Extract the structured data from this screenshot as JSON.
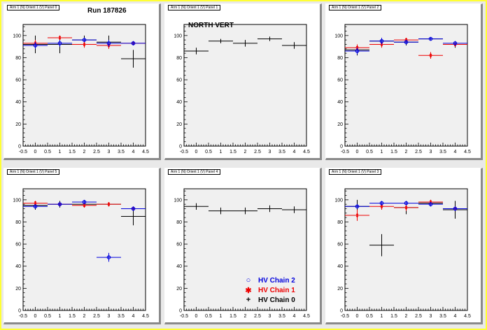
{
  "colors": {
    "chain0": "#000000",
    "chain1": "#ee0000",
    "chain2": "#0000dd",
    "plot_bg": "#f0f0f0",
    "pad_bg": "#ffffff",
    "canvas_bg": "#e9e9e9",
    "border": "#ffff33"
  },
  "labels": {
    "run": "Run 187826",
    "north_vert": "NORTH VERT"
  },
  "legend": [
    {
      "name": "HV Chain 2",
      "marker": "○",
      "color_key": "chain2"
    },
    {
      "name": "HV Chain 1",
      "marker": "✱",
      "color_key": "chain1"
    },
    {
      "name": "HV Chain 0",
      "marker": "+",
      "color_key": "chain0"
    }
  ],
  "chart_data": [
    {
      "type": "scatter",
      "title": "Arm 1 (N) Orient 1 (V) Panel 0",
      "xlim": [
        -0.5,
        4.5
      ],
      "ylim": [
        0,
        110
      ],
      "xticks": [
        "-0.5",
        "0",
        "0.5",
        "1",
        "1.5",
        "2",
        "2.5",
        "3",
        "3.5",
        "4",
        "4.5"
      ],
      "yticks": [
        "0",
        "20",
        "40",
        "60",
        "80",
        "100"
      ],
      "series": [
        {
          "color_key": "chain0",
          "points": [
            {
              "x": 0,
              "y": 92,
              "err": 8
            },
            {
              "x": 1,
              "y": 92,
              "err": 8
            },
            {
              "x": 2,
              "y": 96,
              "err": 4
            },
            {
              "x": 3,
              "y": 94,
              "err": 6
            },
            {
              "x": 4,
              "y": 79,
              "err": 8
            }
          ]
        },
        {
          "color_key": "chain1",
          "points": [
            {
              "x": 0,
              "y": 93,
              "err": 3
            },
            {
              "x": 1,
              "y": 98,
              "err": 2
            },
            {
              "x": 2,
              "y": 92,
              "err": 3
            },
            {
              "x": 3,
              "y": 91,
              "err": 3
            },
            {
              "x": 4,
              "y": 93,
              "err": 2
            }
          ]
        },
        {
          "color_key": "chain2",
          "points": [
            {
              "x": 0,
              "y": 91,
              "err": 3
            },
            {
              "x": 1,
              "y": 93,
              "err": 3
            },
            {
              "x": 2,
              "y": 96,
              "err": 2
            },
            {
              "x": 3,
              "y": 93,
              "err": 3
            },
            {
              "x": 4,
              "y": 93,
              "err": 2
            }
          ]
        }
      ]
    },
    {
      "type": "scatter",
      "title": "Arm 1 (N) Orient 1 (V) Panel 1",
      "xlim": [
        -0.5,
        4.5
      ],
      "ylim": [
        0,
        110
      ],
      "xticks": [
        "-0.5",
        "0",
        "0.5",
        "1",
        "1.5",
        "2",
        "2.5",
        "3",
        "3.5",
        "4",
        "4.5"
      ],
      "yticks": [
        "0",
        "20",
        "40",
        "60",
        "80",
        "100"
      ],
      "series": [
        {
          "color_key": "chain0",
          "points": [
            {
              "x": 0,
              "y": 86,
              "err": 3
            },
            {
              "x": 1,
              "y": 95,
              "err": 2
            },
            {
              "x": 2,
              "y": 93,
              "err": 3
            },
            {
              "x": 3,
              "y": 97,
              "err": 2
            },
            {
              "x": 4,
              "y": 91,
              "err": 3
            }
          ]
        }
      ]
    },
    {
      "type": "scatter",
      "title": "Arm 1 (N) Orient 1 (V) Panel 2",
      "xlim": [
        -0.5,
        4.5
      ],
      "ylim": [
        0,
        110
      ],
      "xticks": [
        "-0.5",
        "0",
        "0.5",
        "1",
        "1.5",
        "2",
        "2.5",
        "3",
        "3.5",
        "4",
        "4.5"
      ],
      "yticks": [
        "0",
        "20",
        "40",
        "60",
        "80",
        "100"
      ],
      "series": [
        {
          "color_key": "chain0",
          "points": [
            {
              "x": 0,
              "y": 87,
              "err": 5
            },
            {
              "x": 1,
              "y": 95,
              "err": 3
            },
            {
              "x": 2,
              "y": 94,
              "err": 3
            },
            {
              "x": 3,
              "y": 97,
              "err": 1
            },
            {
              "x": 4,
              "y": 92,
              "err": 3
            }
          ]
        },
        {
          "color_key": "chain1",
          "points": [
            {
              "x": 0,
              "y": 89,
              "err": 3
            },
            {
              "x": 1,
              "y": 92,
              "err": 3
            },
            {
              "x": 2,
              "y": 96,
              "err": 2
            },
            {
              "x": 3,
              "y": 82,
              "err": 3
            },
            {
              "x": 4,
              "y": 92,
              "err": 2
            }
          ]
        },
        {
          "color_key": "chain2",
          "points": [
            {
              "x": 0,
              "y": 86,
              "err": 3
            },
            {
              "x": 1,
              "y": 95,
              "err": 3
            },
            {
              "x": 2,
              "y": 94,
              "err": 2
            },
            {
              "x": 3,
              "y": 97,
              "err": 1
            },
            {
              "x": 4,
              "y": 93,
              "err": 2
            }
          ]
        }
      ]
    },
    {
      "type": "scatter",
      "title": "Arm 1 (N) Orient 1 (V) Panel 5",
      "xlim": [
        -0.5,
        4.5
      ],
      "ylim": [
        0,
        110
      ],
      "xticks": [
        "-0.5",
        "0",
        "0.5",
        "1",
        "1.5",
        "2",
        "2.5",
        "3",
        "3.5",
        "4",
        "4.5"
      ],
      "yticks": [
        "0",
        "20",
        "40",
        "60",
        "80",
        "100"
      ],
      "series": [
        {
          "color_key": "chain0",
          "points": [
            {
              "x": 0,
              "y": 95,
              "err": 4
            },
            {
              "x": 1,
              "y": 96,
              "err": 3
            },
            {
              "x": 2,
              "y": 96,
              "err": 3
            },
            {
              "x": 3,
              "y": 96,
              "err": 2
            },
            {
              "x": 4,
              "y": 85,
              "err": 8
            }
          ]
        },
        {
          "color_key": "chain1",
          "points": [
            {
              "x": 0,
              "y": 97,
              "err": 2
            },
            {
              "x": 1,
              "y": 96,
              "err": 2
            },
            {
              "x": 2,
              "y": 95,
              "err": 2
            },
            {
              "x": 3,
              "y": 96,
              "err": 2
            },
            {
              "x": 4,
              "y": 92,
              "err": 2
            }
          ]
        },
        {
          "color_key": "chain2",
          "points": [
            {
              "x": 0,
              "y": 94,
              "err": 2
            },
            {
              "x": 1,
              "y": 96,
              "err": 2
            },
            {
              "x": 2,
              "y": 98,
              "err": 2
            },
            {
              "x": 3,
              "y": 48,
              "err": 4
            },
            {
              "x": 4,
              "y": 92,
              "err": 2
            }
          ]
        }
      ]
    },
    {
      "type": "scatter",
      "title": "Arm 1 (N) Orient 1 (V) Panel 4",
      "xlim": [
        -0.5,
        4.5
      ],
      "ylim": [
        0,
        110
      ],
      "xticks": [
        "-0.5",
        "0",
        "0.5",
        "1",
        "1.5",
        "2",
        "2.5",
        "3",
        "3.5",
        "4",
        "4.5"
      ],
      "yticks": [
        "0",
        "20",
        "40",
        "60",
        "80",
        "100"
      ],
      "series": [
        {
          "color_key": "chain0",
          "points": [
            {
              "x": 0,
              "y": 94,
              "err": 3
            },
            {
              "x": 1,
              "y": 90,
              "err": 3
            },
            {
              "x": 2,
              "y": 90,
              "err": 3
            },
            {
              "x": 3,
              "y": 92,
              "err": 3
            },
            {
              "x": 4,
              "y": 91,
              "err": 3
            }
          ]
        }
      ]
    },
    {
      "type": "scatter",
      "title": "Arm 1 (N) Orient 1 (V) Panel 3",
      "xlim": [
        -0.5,
        4.5
      ],
      "ylim": [
        0,
        110
      ],
      "xticks": [
        "-0.5",
        "0",
        "0.5",
        "1",
        "1.5",
        "2",
        "2.5",
        "3",
        "3.5",
        "4",
        "4.5"
      ],
      "yticks": [
        "0",
        "20",
        "40",
        "60",
        "80",
        "100"
      ],
      "series": [
        {
          "color_key": "chain0",
          "points": [
            {
              "x": 0,
              "y": 94,
              "err": 6
            },
            {
              "x": 1,
              "y": 59,
              "err": 10
            },
            {
              "x": 2,
              "y": 93,
              "err": 6
            },
            {
              "x": 3,
              "y": 97,
              "err": 3
            },
            {
              "x": 4,
              "y": 91,
              "err": 8
            }
          ]
        },
        {
          "color_key": "chain1",
          "points": [
            {
              "x": 0,
              "y": 86,
              "err": 5
            },
            {
              "x": 1,
              "y": 94,
              "err": 3
            },
            {
              "x": 2,
              "y": 93,
              "err": 3
            },
            {
              "x": 3,
              "y": 98,
              "err": 2
            },
            {
              "x": 4,
              "y": 92,
              "err": 2
            }
          ]
        },
        {
          "color_key": "chain2",
          "points": [
            {
              "x": 0,
              "y": 94,
              "err": 2
            },
            {
              "x": 1,
              "y": 97,
              "err": 2
            },
            {
              "x": 2,
              "y": 97,
              "err": 2
            },
            {
              "x": 3,
              "y": 96,
              "err": 2
            },
            {
              "x": 4,
              "y": 92,
              "err": 2
            }
          ]
        }
      ]
    }
  ]
}
